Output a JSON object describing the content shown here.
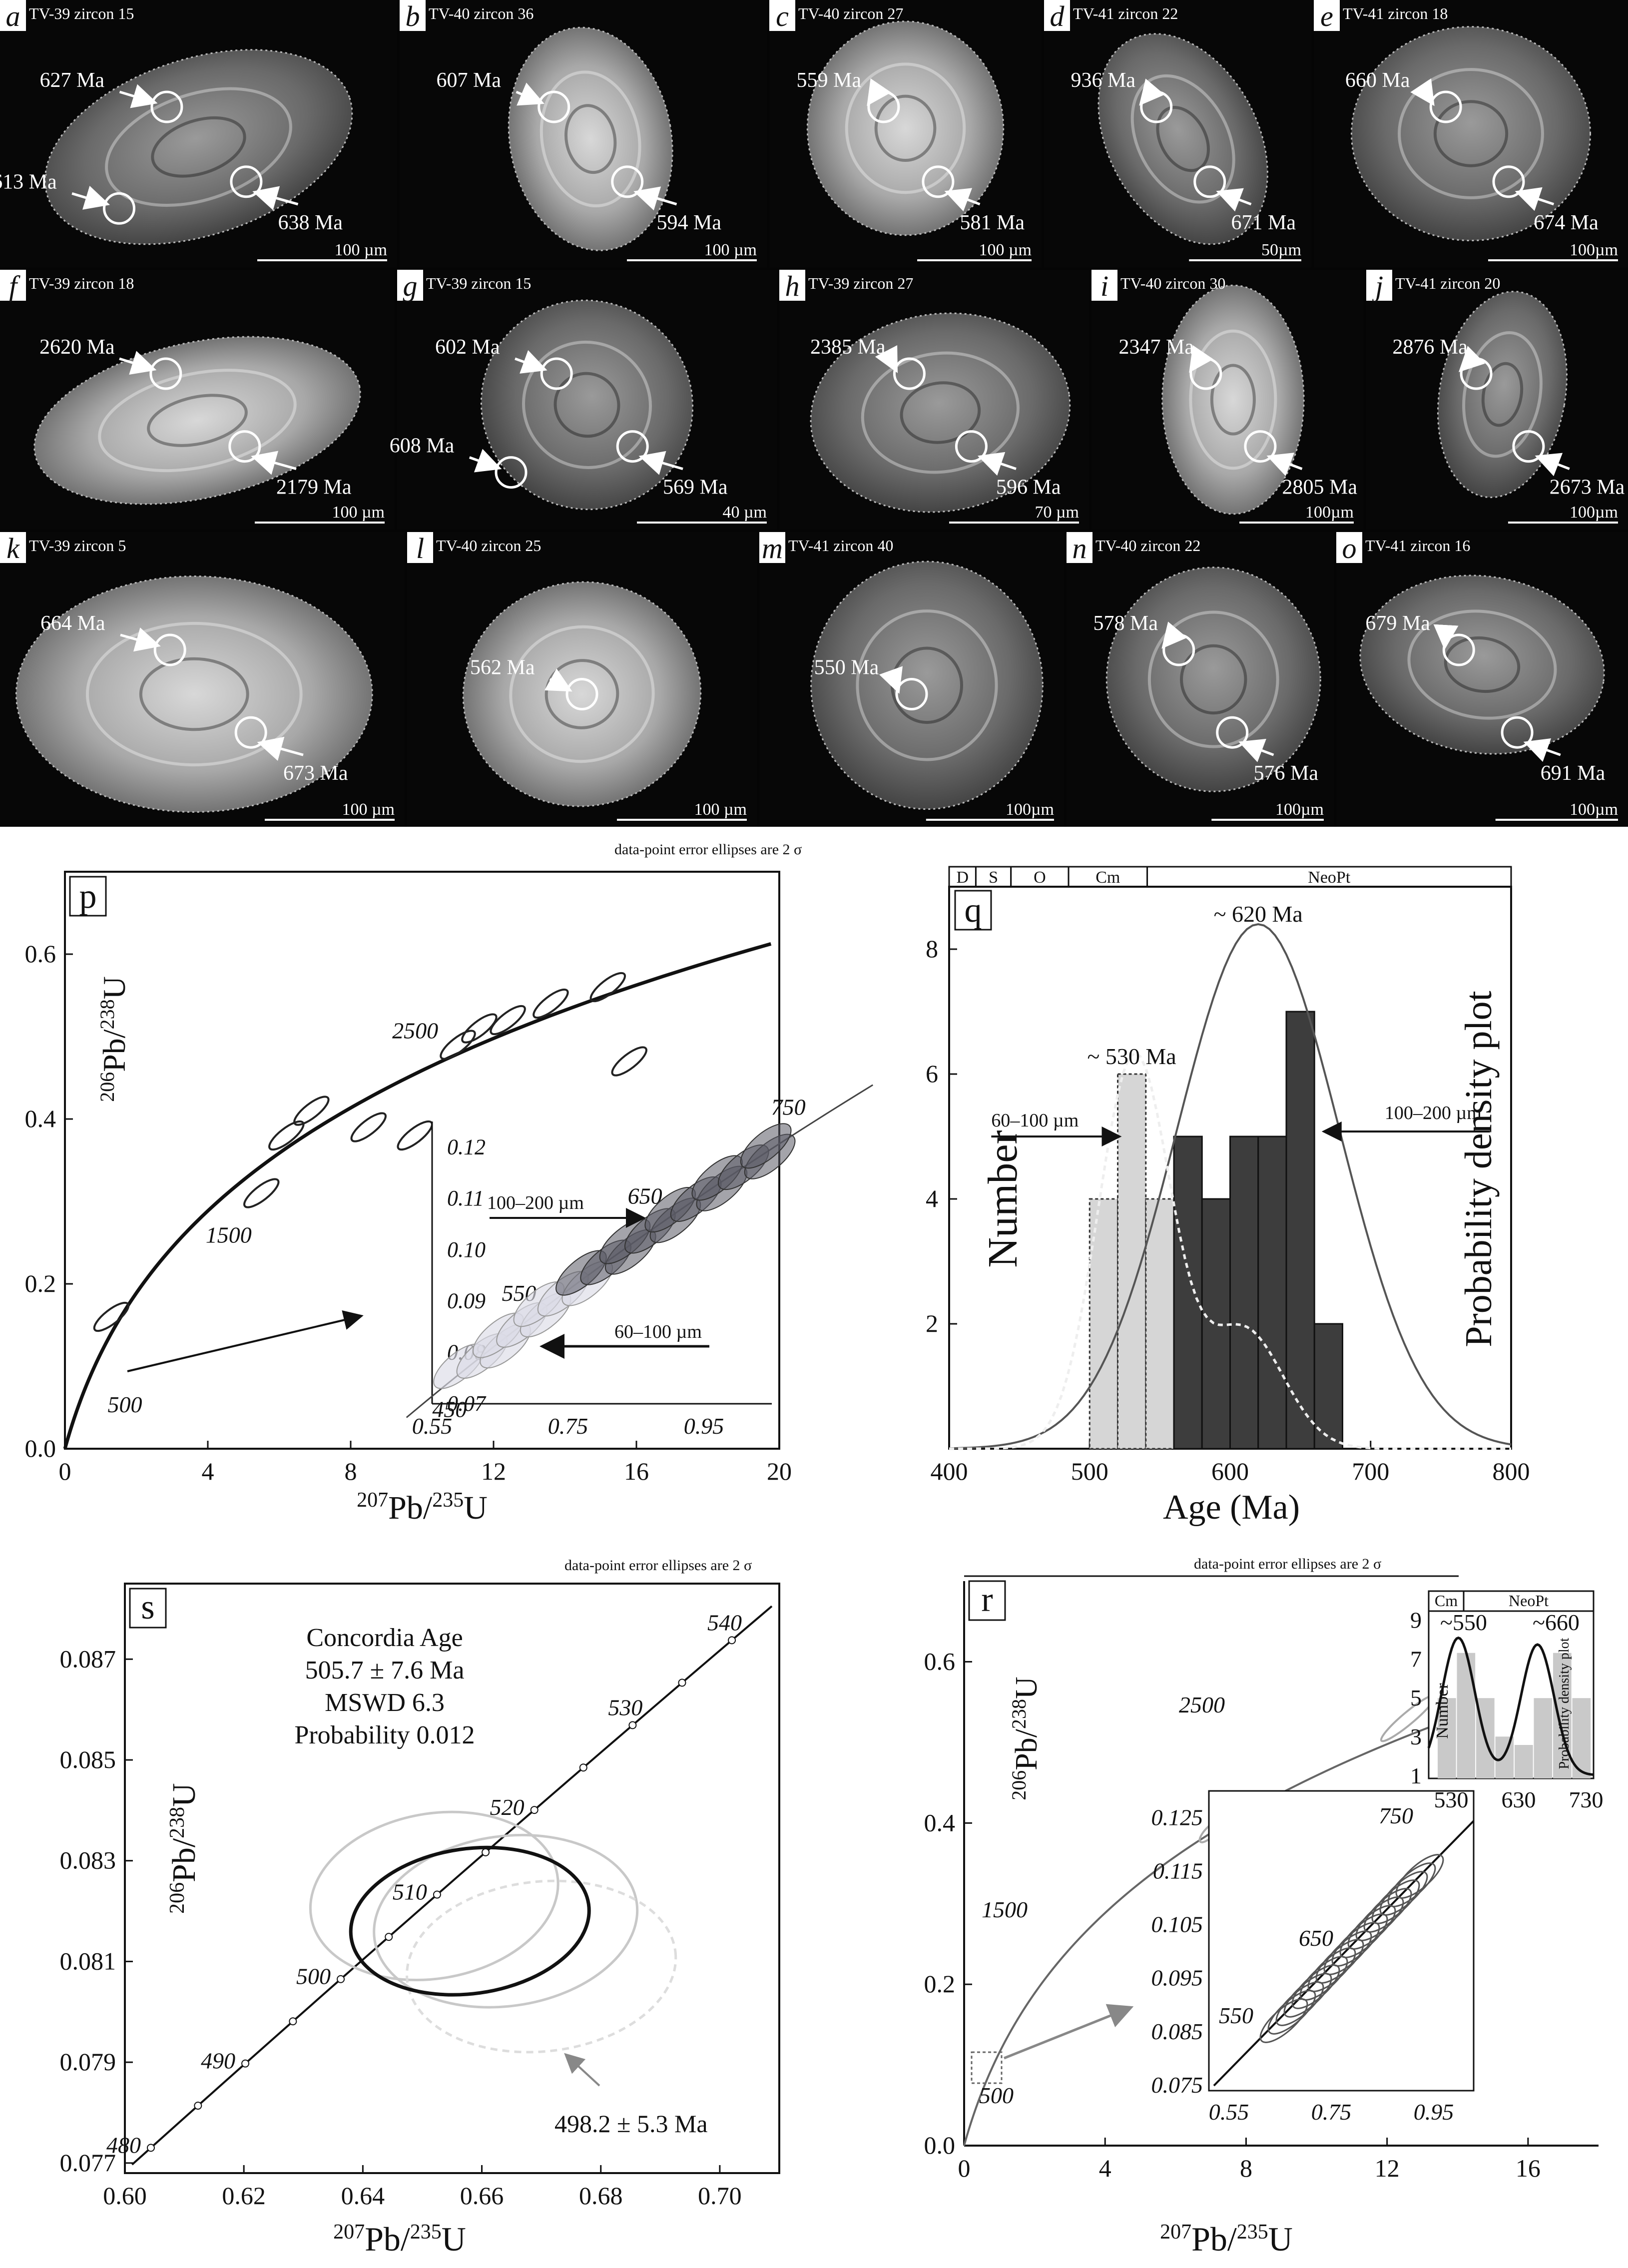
{
  "panels_cl": [
    {
      "letter": "a",
      "label": "TV-39 zircon 15",
      "ages": [
        "627 Ma",
        "638 Ma",
        "613 Ma"
      ],
      "scale": "100 µm"
    },
    {
      "letter": "b",
      "label": "TV-40 zircon 36",
      "ages": [
        "607 Ma",
        "594 Ma"
      ],
      "scale": "100 µm"
    },
    {
      "letter": "c",
      "label": "TV-40 zircon 27",
      "ages": [
        "559 Ma",
        "581 Ma"
      ],
      "scale": "100 µm"
    },
    {
      "letter": "d",
      "label": "TV-41 zircon 22",
      "ages": [
        "936 Ma",
        "671 Ma"
      ],
      "scale": "50µm"
    },
    {
      "letter": "e",
      "label": "TV-41 zircon 18",
      "ages": [
        "660 Ma",
        "674 Ma"
      ],
      "scale": "100µm"
    },
    {
      "letter": "f",
      "label": "TV-39 zircon 18",
      "ages": [
        "2620 Ma",
        "2179 Ma"
      ],
      "scale": "100 µm"
    },
    {
      "letter": "g",
      "label": "TV-39 zircon 15",
      "ages": [
        "602 Ma",
        "569 Ma",
        "608 Ma"
      ],
      "scale": "40 µm"
    },
    {
      "letter": "h",
      "label": "TV-39 zircon 27",
      "ages": [
        "2385 Ma",
        "596 Ma"
      ],
      "scale": "70 µm"
    },
    {
      "letter": "i",
      "label": "TV-40 zircon 30",
      "ages": [
        "2347 Ma",
        "2805 Ma"
      ],
      "scale": "100µm"
    },
    {
      "letter": "j",
      "label": "TV-41 zircon 20",
      "ages": [
        "2876 Ma",
        "2673 Ma"
      ],
      "scale": "100µm"
    },
    {
      "letter": "k",
      "label": "TV-39 zircon 5",
      "ages": [
        "664 Ma",
        "673 Ma"
      ],
      "scale": "100 µm"
    },
    {
      "letter": "l",
      "label": "TV-40 zircon 25",
      "ages": [
        "562 Ma"
      ],
      "scale": "100 µm"
    },
    {
      "letter": "m",
      "label": "TV-41 zircon 40",
      "ages": [
        "550 Ma"
      ],
      "scale": "100µm"
    },
    {
      "letter": "n",
      "label": "TV-40 zircon 22",
      "ages": [
        "578 Ma",
        "576 Ma"
      ],
      "scale": "100µm"
    },
    {
      "letter": "o",
      "label": "TV-41 zircon 16",
      "ages": [
        "679 Ma",
        "691 Ma"
      ],
      "scale": "100µm"
    }
  ],
  "labels": {
    "ellipse_note": "data-point error ellipses are 2 σ",
    "x_axis": "Pb/U",
    "x_sup1": "207",
    "x_sup2": "235",
    "y_axis": "Pb/U",
    "y_sup1": "206",
    "y_sup2": "238",
    "age_axis": "Age (Ma)",
    "number": "Number",
    "pdp": "Probability density plot",
    "inset_big": "100–200 µm",
    "inset_small": "60–100 µm"
  },
  "chart_data": [
    {
      "id": "p",
      "type": "scatter",
      "title": "",
      "xlabel": "207Pb/235U",
      "ylabel": "206Pb/238U",
      "xlim": [
        0,
        20
      ],
      "ylim": [
        0,
        0.7
      ],
      "xticks": [
        "0",
        "4",
        "8",
        "12",
        "16",
        "20"
      ],
      "yticks": [
        "0.0",
        "0.2",
        "0.4",
        "0.6"
      ],
      "concordia_ages": [
        "500",
        "1500",
        "2500"
      ],
      "inset": {
        "xlim": [
          0.55,
          1.05
        ],
        "ylim": [
          0.07,
          0.125
        ],
        "xticks": [
          "0.55",
          "0.75",
          "0.95"
        ],
        "yticks": [
          "0.07",
          "0.08",
          "0.09",
          "0.10",
          "0.11",
          "0.12"
        ],
        "ages": [
          "450",
          "550",
          "650",
          "750"
        ],
        "series": [
          {
            "name": "100–200 µm"
          },
          {
            "name": "60–100 µm"
          }
        ]
      },
      "ellipses": [
        {
          "x": 11.0,
          "y": 0.49
        },
        {
          "x": 11.6,
          "y": 0.51
        },
        {
          "x": 12.4,
          "y": 0.52
        },
        {
          "x": 13.6,
          "y": 0.54
        },
        {
          "x": 15.2,
          "y": 0.56
        },
        {
          "x": 15.8,
          "y": 0.47
        },
        {
          "x": 6.2,
          "y": 0.38
        },
        {
          "x": 6.9,
          "y": 0.41
        },
        {
          "x": 8.5,
          "y": 0.39
        },
        {
          "x": 9.8,
          "y": 0.38
        },
        {
          "x": 5.5,
          "y": 0.31
        },
        {
          "x": 1.3,
          "y": 0.16
        }
      ]
    },
    {
      "id": "q",
      "type": "bar",
      "xlabel": "Age (Ma)",
      "ylabel": "Number",
      "xlim": [
        400,
        800
      ],
      "ylim": [
        0,
        9
      ],
      "xticks": [
        "400",
        "500",
        "600",
        "700",
        "800"
      ],
      "yticks": [
        "2",
        "4",
        "6",
        "8"
      ],
      "timescale": [
        "D",
        "S",
        "O",
        "Cm",
        "NeoPt"
      ],
      "peaks": [
        "~ 620 Ma",
        "~ 530 Ma"
      ],
      "series": [
        {
          "name": "60–100 µm",
          "bins": [
            500,
            520,
            540,
            560,
            580,
            600,
            620,
            640
          ],
          "values": [
            4,
            6,
            4,
            3,
            4,
            3,
            2,
            2
          ]
        },
        {
          "name": "100–200 µm",
          "bins": [
            560,
            580,
            600,
            620,
            640,
            660
          ],
          "values": [
            5,
            4,
            5,
            5,
            7,
            2
          ]
        }
      ]
    },
    {
      "id": "s",
      "type": "scatter",
      "title": "Concordia Age",
      "annotations": [
        "Concordia Age",
        "505.7 ± 7.6 Ma",
        "MSWD 6.3",
        "Probability 0.012",
        "498.2 ± 5.3 Ma"
      ],
      "xlabel": "207Pb/235U",
      "ylabel": "206Pb/238U",
      "xlim": [
        0.6,
        0.71
      ],
      "ylim": [
        0.0768,
        0.0885
      ],
      "xticks": [
        "0.60",
        "0.62",
        "0.64",
        "0.66",
        "0.68",
        "0.70"
      ],
      "yticks": [
        "0.077",
        "0.079",
        "0.081",
        "0.083",
        "0.085",
        "0.087"
      ],
      "concordia_ages": [
        "480",
        "490",
        "500",
        "510",
        "520",
        "530",
        "540"
      ]
    },
    {
      "id": "r",
      "type": "scatter",
      "xlabel": "207Pb/235U",
      "ylabel": "206Pb/238U",
      "xlim": [
        0,
        18
      ],
      "ylim": [
        0,
        0.7
      ],
      "xticks": [
        "0",
        "4",
        "8",
        "12",
        "16"
      ],
      "yticks": [
        "0.0",
        "0.2",
        "0.4",
        "0.6"
      ],
      "concordia_ages": [
        "500",
        "1500",
        "2500"
      ],
      "inset": {
        "xticks": [
          "0.55",
          "0.75",
          "0.95"
        ],
        "yticks": [
          "0.075",
          "0.085",
          "0.095",
          "0.105",
          "0.115",
          "0.125"
        ],
        "ages": [
          "550",
          "650",
          "750"
        ]
      },
      "histogram": {
        "xticks": [
          "530",
          "630",
          "730"
        ],
        "yticks": [
          "1",
          "3",
          "5",
          "7",
          "9"
        ],
        "peaks": [
          "~550",
          "~660"
        ],
        "timescale": [
          "Cm",
          "NeoPt"
        ],
        "ylabel": "Number",
        "ylabel2": "Probability density plot"
      }
    }
  ]
}
